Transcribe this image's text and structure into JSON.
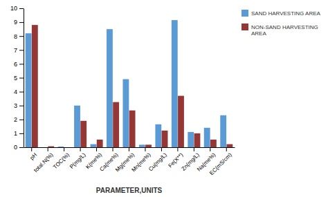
{
  "chart_data": {
    "type": "bar",
    "categories": [
      "pH",
      "total.N(%)",
      "TOC(%)",
      "P(mg/L)",
      "K(me%)",
      "Ca(me%)",
      "Mg(me%)",
      "Mn(me%)",
      "Cu(mg/L)",
      "Fe(X**)",
      "Zn(mg/L)",
      "Na(me%)",
      "EC(mS/cm)"
    ],
    "series": [
      {
        "name": "SAND HARVESTING AREA",
        "color": "#5B9BD5",
        "values": [
          8.2,
          0.0,
          0.05,
          3.0,
          0.22,
          8.5,
          4.9,
          0.18,
          1.65,
          9.15,
          1.1,
          1.4,
          2.3
        ]
      },
      {
        "name": "NON-SAND HARVESTING\nAREA",
        "color": "#953735",
        "values": [
          8.8,
          0.07,
          0.0,
          1.9,
          0.55,
          3.25,
          2.65,
          0.18,
          1.2,
          3.7,
          1.0,
          0.55,
          0.22
        ]
      }
    ],
    "xlabel": "PARAMETER,UNITS",
    "ylim": [
      0,
      10
    ],
    "yticks": [
      0,
      1,
      2,
      3,
      4,
      5,
      6,
      7,
      8,
      9,
      10
    ],
    "grid": false,
    "legend": "upper right"
  }
}
